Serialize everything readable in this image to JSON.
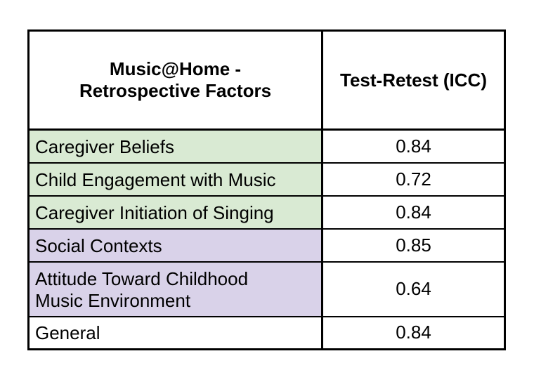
{
  "chart_data": {
    "type": "table",
    "columns": [
      "Music@Home - Retrospective Factors",
      "Test-Retest (ICC)"
    ],
    "header_lines": [
      "Music@Home -",
      "Retrospective Factors"
    ],
    "rows": [
      {
        "factor": "Caregiver Beliefs",
        "icc": "0.84",
        "group_color": "#d9ead3"
      },
      {
        "factor": "Child Engagement with Music",
        "icc": "0.72",
        "group_color": "#d9ead3"
      },
      {
        "factor": "Caregiver Initiation of Singing",
        "icc": "0.84",
        "group_color": "#d9ead3"
      },
      {
        "factor": "Social Contexts",
        "icc": "0.85",
        "group_color": "#d9d2e9"
      },
      {
        "factor_lines": [
          "Attitude Toward Childhood",
          "Music Environment"
        ],
        "icc": "0.64",
        "group_color": "#d9d2e9"
      },
      {
        "factor": "General",
        "icc": "0.84",
        "group_color": "#ffffff"
      }
    ]
  }
}
